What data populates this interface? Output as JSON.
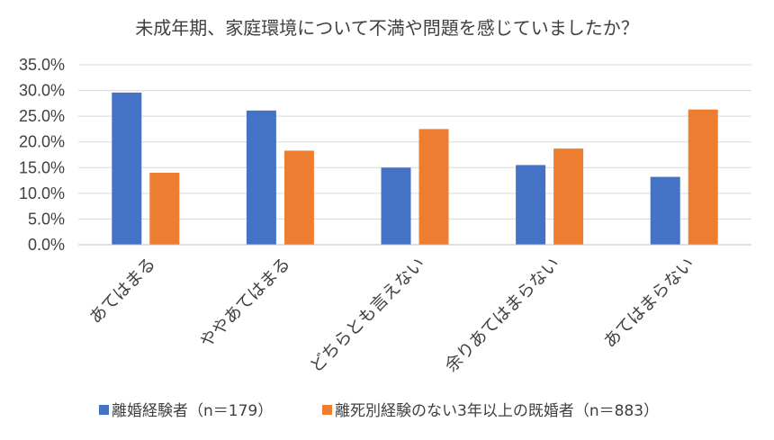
{
  "chart_data": {
    "type": "bar",
    "title": "未成年期、家庭環境について不満や問題を感じていましたか？",
    "categories": [
      "あてはまる",
      "ややあてはまる",
      "どちらとも言えない",
      "余りあてはまらない",
      "あてはまらない"
    ],
    "series": [
      {
        "name": "離婚経験者（n＝179）",
        "color": "#4472c4",
        "values": [
          29.6,
          26.1,
          15.0,
          15.5,
          13.2
        ]
      },
      {
        "name": "離死別経験のない3年以上の既婚者（n＝883）",
        "color": "#ed7d31",
        "values": [
          14.0,
          18.3,
          22.5,
          18.7,
          26.3
        ]
      }
    ],
    "ylim": [
      0,
      35
    ],
    "ytick_labels": [
      "0.0%",
      "5.0%",
      "10.0%",
      "15.0%",
      "20.0%",
      "25.0%",
      "30.0%",
      "35.0%"
    ],
    "grid": true,
    "legend_position": "bottom",
    "xlabel": "",
    "ylabel": ""
  }
}
